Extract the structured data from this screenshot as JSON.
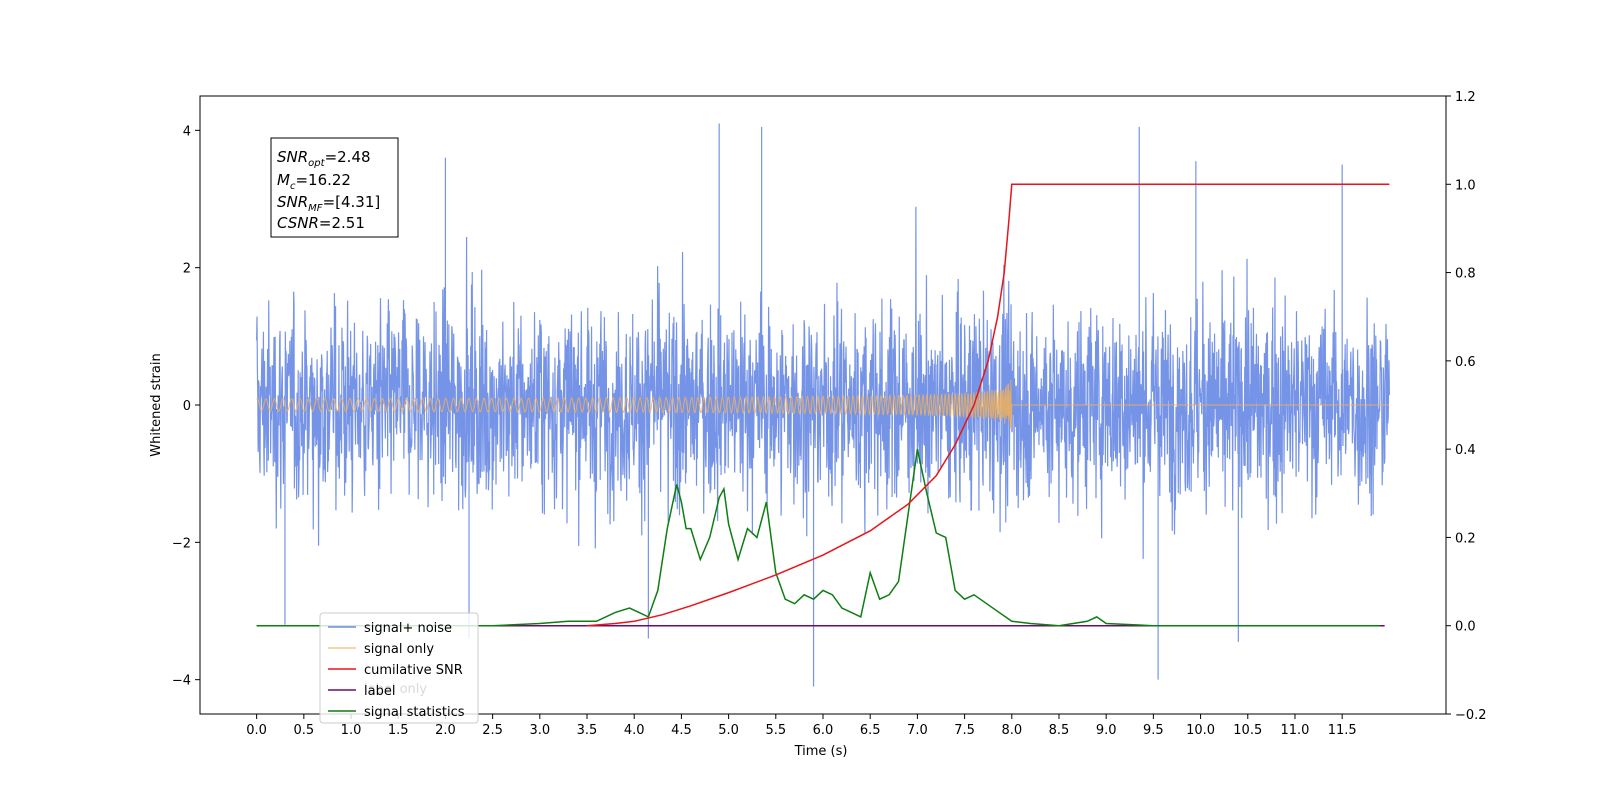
{
  "chart_data": {
    "type": "line",
    "xlabel": "Time (s)",
    "ylabel_left": "Whitened strain",
    "ylabel_right": "",
    "xlim": [
      -0.6,
      12.6
    ],
    "ylim_left": [
      -4.5,
      4.5
    ],
    "ylim_right": [
      -0.2,
      1.2
    ],
    "x_ticks": [
      0.0,
      0.5,
      1.0,
      1.5,
      2.0,
      2.5,
      3.0,
      3.5,
      4.0,
      4.5,
      5.0,
      5.5,
      6.0,
      6.5,
      7.0,
      7.5,
      8.0,
      8.5,
      9.0,
      9.5,
      10.0,
      10.5,
      11.0,
      11.5
    ],
    "x_tick_labels": [
      "0.0",
      "0.5",
      "1.0",
      "1.5",
      "2.0",
      "2.5",
      "3.0",
      "3.5",
      "4.0",
      "4.5",
      "5.0",
      "5.5",
      "6.0",
      "6.5",
      "7.0",
      "7.5",
      "8.0",
      "8.5",
      "9.0",
      "9.5",
      "10.0",
      "10.5",
      "11.0",
      "11.5"
    ],
    "y_ticks_left": [
      -4,
      -2,
      0,
      2,
      4
    ],
    "y_tick_labels_left": [
      "−4",
      "−2",
      "0",
      "2",
      "4"
    ],
    "y_ticks_right": [
      -0.2,
      0.0,
      0.2,
      0.4,
      0.6,
      0.8,
      1.0,
      1.2
    ],
    "y_tick_labels_right": [
      "−0.2",
      "0.0",
      "0.2",
      "0.4",
      "0.6",
      "0.8",
      "1.0",
      "1.2"
    ],
    "grid": false,
    "legend_position": "lower-left",
    "series": [
      {
        "name": "signal+ noise",
        "axis": "left",
        "color": "#6f8ee6",
        "description_values": {
          "x_range": [
            0.0,
            12.0
          ],
          "typical_envelope": [
            -2.2,
            2.2
          ],
          "peaks": [
            [
              0.3,
              -3.2
            ],
            [
              2.0,
              3.6
            ],
            [
              2.25,
              -3.4
            ],
            [
              4.15,
              -3.4
            ],
            [
              4.9,
              4.1
            ],
            [
              5.35,
              4.05
            ],
            [
              5.9,
              -4.1
            ],
            [
              9.35,
              4.05
            ],
            [
              9.55,
              -4.0
            ],
            [
              9.95,
              3.55
            ],
            [
              10.4,
              -3.45
            ],
            [
              11.5,
              3.5
            ]
          ]
        }
      },
      {
        "name": "signal only",
        "axis": "left",
        "color": "#f0b05a",
        "chirp": {
          "start": 0.0,
          "merger": 8.0,
          "end": 12.0,
          "peak_amplitude": 0.45
        }
      },
      {
        "name": "cumilative SNR",
        "axis": "right",
        "color": "#e8141b",
        "x": [
          3.5,
          3.8,
          4.0,
          4.3,
          4.6,
          5.0,
          5.5,
          6.0,
          6.5,
          6.9,
          7.2,
          7.4,
          7.6,
          7.75,
          7.85,
          7.92,
          7.97,
          8.0,
          8.05,
          11.5,
          12.0
        ],
        "values": [
          0.0,
          0.005,
          0.01,
          0.025,
          0.045,
          0.075,
          0.115,
          0.16,
          0.215,
          0.275,
          0.34,
          0.41,
          0.5,
          0.6,
          0.7,
          0.8,
          0.92,
          1.0,
          1.0,
          1.0,
          1.0
        ]
      },
      {
        "name": "label",
        "axis": "right",
        "color": "#6a0d6a",
        "x": [
          0.0,
          11.95
        ],
        "values": [
          0.0,
          0.0
        ]
      },
      {
        "name": "signal statistics",
        "axis": "right",
        "color": "#0e7d12",
        "x": [
          0.0,
          2.5,
          3.0,
          3.3,
          3.6,
          3.8,
          3.95,
          4.05,
          4.15,
          4.25,
          4.35,
          4.45,
          4.5,
          4.55,
          4.6,
          4.7,
          4.8,
          4.9,
          4.95,
          5.0,
          5.1,
          5.2,
          5.3,
          5.4,
          5.5,
          5.6,
          5.7,
          5.8,
          5.9,
          6.0,
          6.1,
          6.2,
          6.3,
          6.4,
          6.5,
          6.6,
          6.7,
          6.8,
          6.9,
          7.0,
          7.05,
          7.1,
          7.2,
          7.3,
          7.4,
          7.5,
          7.6,
          7.8,
          8.0,
          8.2,
          8.5,
          8.8,
          8.9,
          9.0,
          9.5,
          11.9
        ],
        "values": [
          0.0,
          0.0,
          0.005,
          0.01,
          0.01,
          0.03,
          0.04,
          0.03,
          0.02,
          0.08,
          0.22,
          0.32,
          0.28,
          0.22,
          0.22,
          0.15,
          0.2,
          0.29,
          0.31,
          0.23,
          0.15,
          0.22,
          0.2,
          0.28,
          0.12,
          0.06,
          0.05,
          0.07,
          0.06,
          0.08,
          0.07,
          0.04,
          0.03,
          0.02,
          0.12,
          0.06,
          0.07,
          0.1,
          0.25,
          0.4,
          0.35,
          0.3,
          0.21,
          0.2,
          0.08,
          0.06,
          0.07,
          0.04,
          0.01,
          0.005,
          0.0,
          0.01,
          0.02,
          0.005,
          0.0,
          0.0
        ]
      }
    ],
    "stats_box": {
      "line1_main": "SNR",
      "line1_sub": "opt",
      "line1_value": "=2.48",
      "line2_main": "M",
      "line2_sub": "c",
      "line2_value": "=16.22",
      "line3_main": "SNR",
      "line3_sub": "MF",
      "line3_value": "=[4.31]",
      "line4_main": "CSNR",
      "line4_value": "=2.51"
    },
    "legend_occluded_text": "label only"
  },
  "colors": {
    "noise": "#6f8ee6",
    "signal": "#f0b05a",
    "cumulative": "#e8141b",
    "label": "#6a0d6a",
    "stats": "#0e7d12",
    "axis": "#000000"
  }
}
